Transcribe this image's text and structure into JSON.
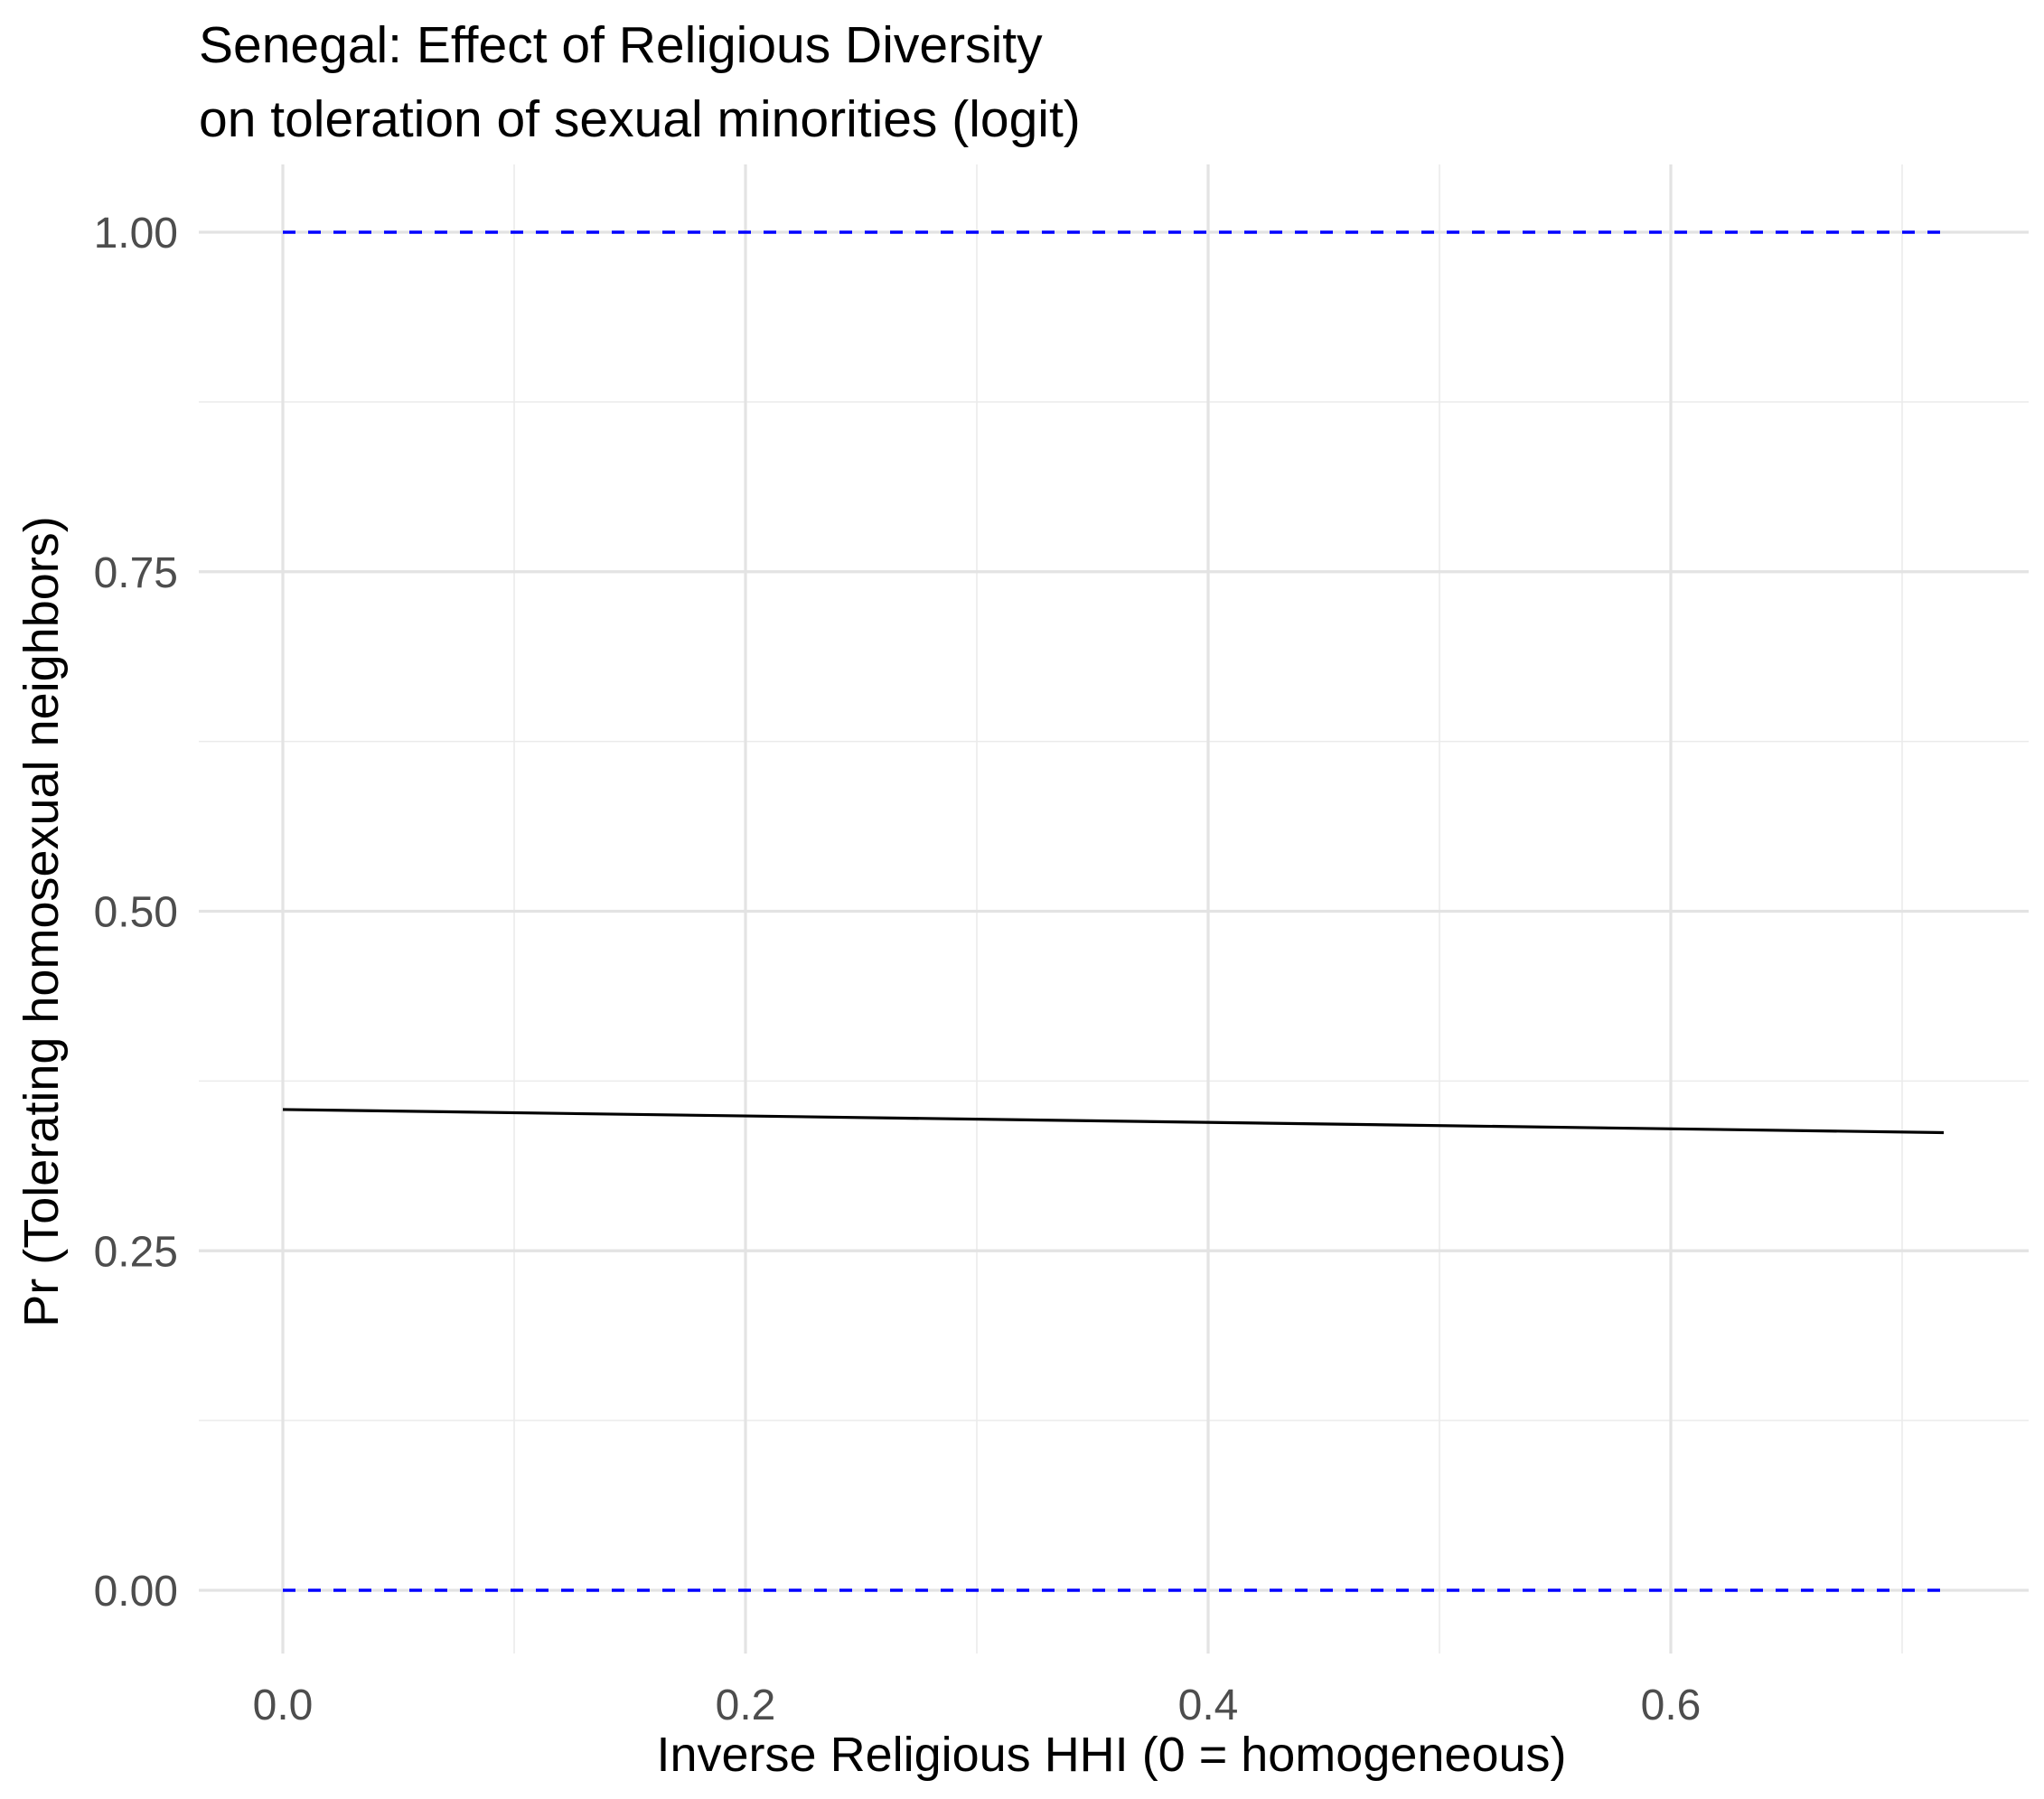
{
  "chart_data": {
    "type": "line",
    "title": "Senegal: Effect of Religious Diversity",
    "subtitle": "on toleration of sexual minorities (logit)",
    "xlabel": "Inverse Religious HHI (0 = homogeneous)",
    "ylabel": "Pr (Tolerating homosexual neighbors)",
    "xlim": [
      -0.04,
      0.75
    ],
    "ylim": [
      -0.045,
      1.045
    ],
    "x_ticks": [
      0.0,
      0.2,
      0.4,
      0.6
    ],
    "x_tick_labels": [
      "0.0",
      "0.2",
      "0.4",
      "0.6"
    ],
    "x_minor_ticks": [
      0.1,
      0.3,
      0.5,
      0.7
    ],
    "y_ticks": [
      0.0,
      0.25,
      0.5,
      0.75,
      1.0
    ],
    "y_tick_labels": [
      "0.00",
      "0.25",
      "0.50",
      "0.75",
      "1.00"
    ],
    "y_minor_ticks": [
      0.125,
      0.375,
      0.625,
      0.875
    ],
    "grid": true,
    "series": [
      {
        "style": "solid",
        "color": "#000000",
        "x": [
          0.0,
          0.718
        ],
        "y": [
          0.354,
          0.337
        ]
      },
      {
        "style": "dashed",
        "color": "#0000ff",
        "x": [
          0.0,
          0.718
        ],
        "y": [
          1.0,
          1.0
        ]
      },
      {
        "style": "dashed",
        "color": "#0000ff",
        "x": [
          0.0,
          0.718
        ],
        "y": [
          0.0,
          0.0
        ]
      }
    ]
  }
}
